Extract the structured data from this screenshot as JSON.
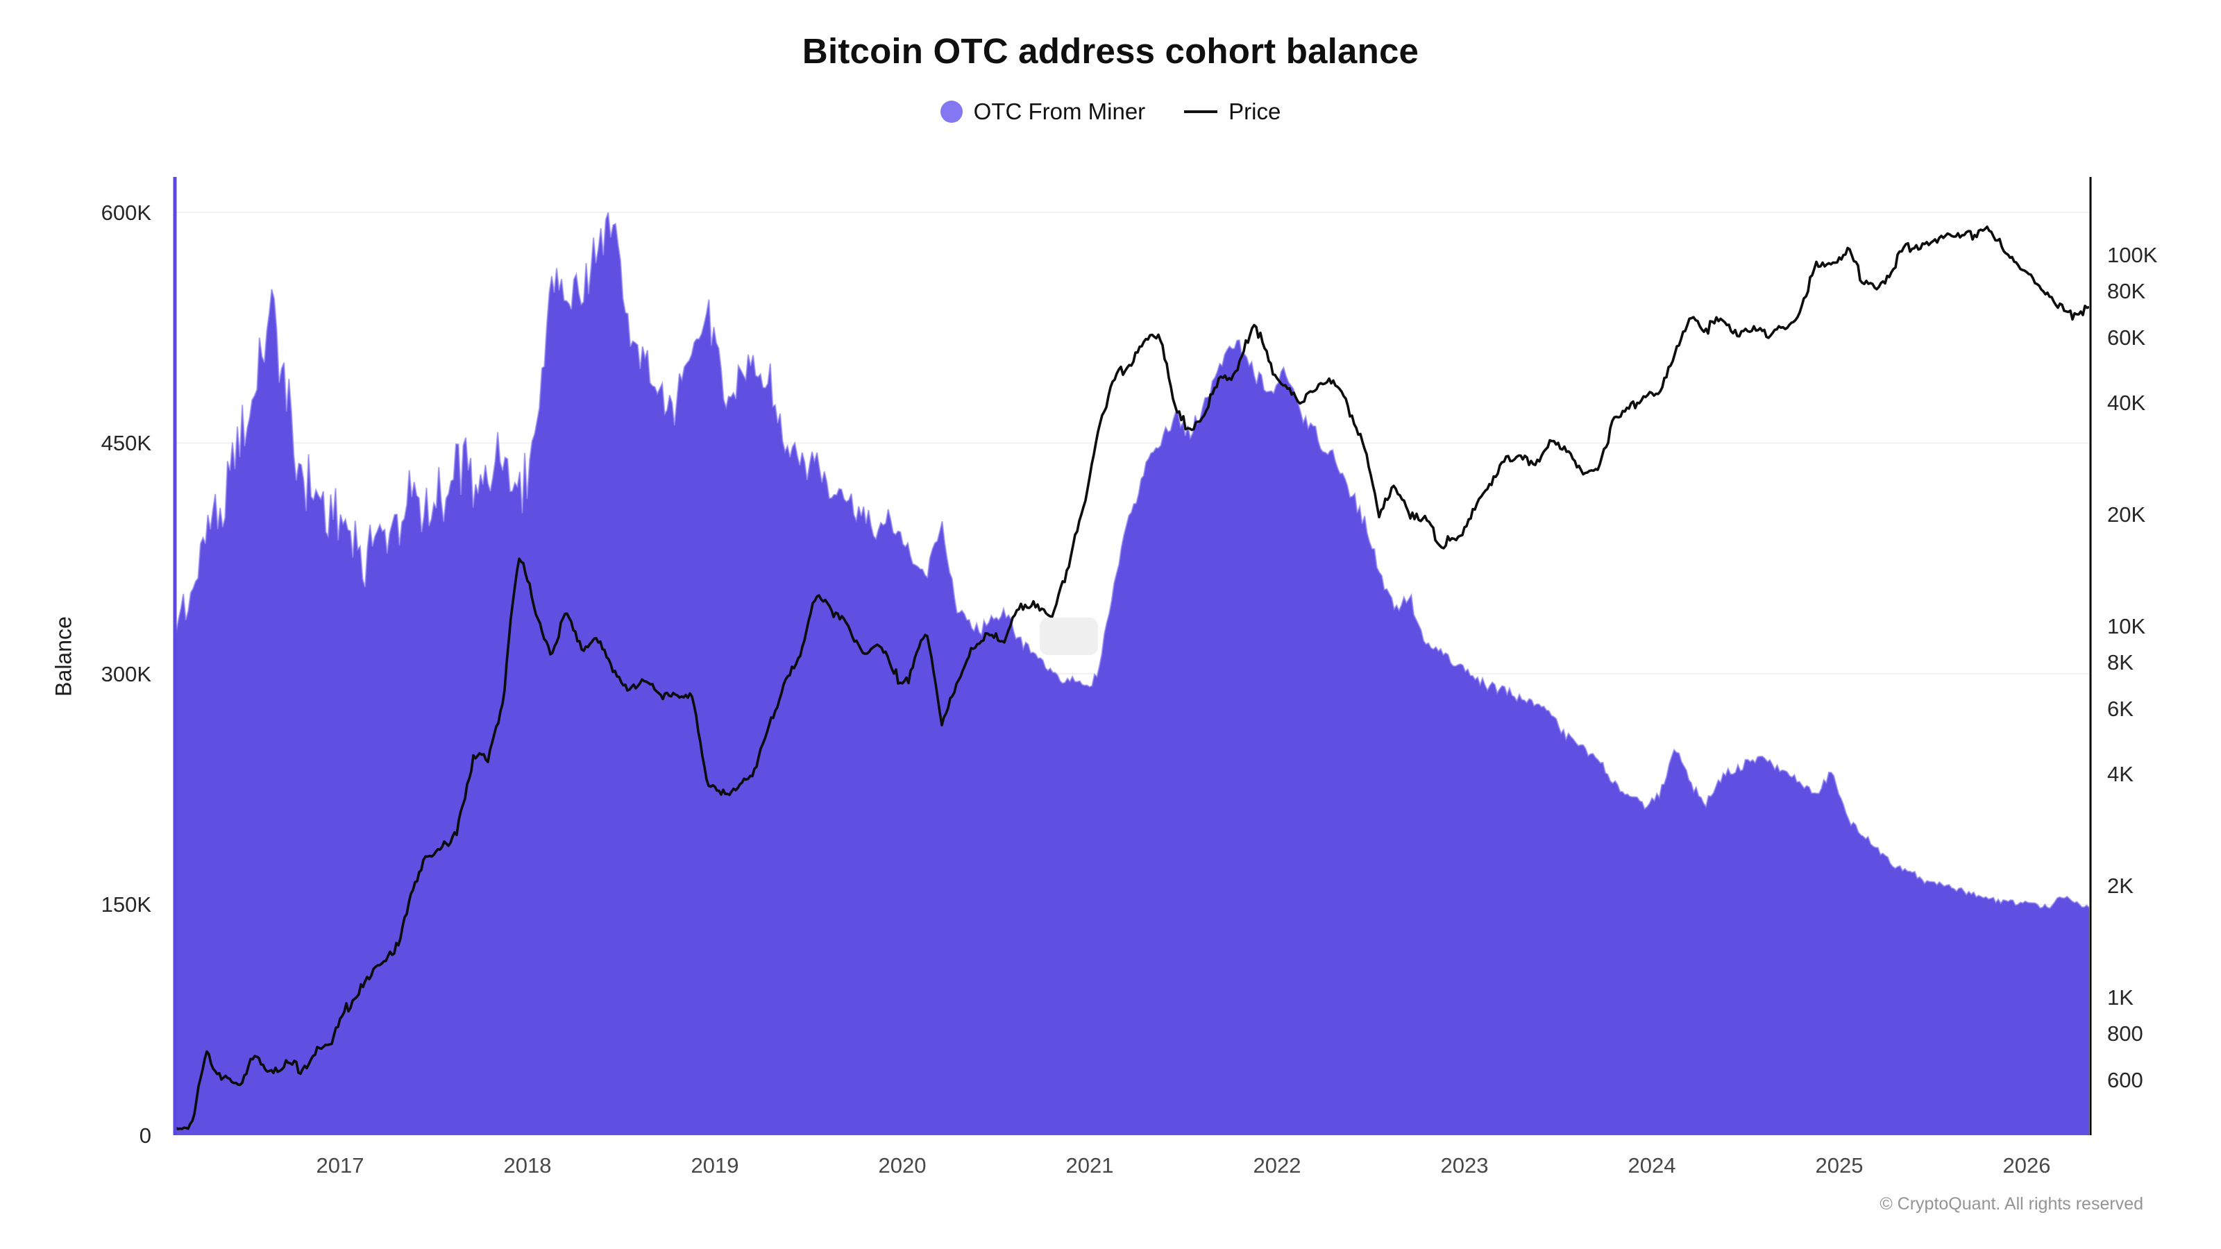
{
  "page": {
    "footer": "© CryptoQuant. All rights reserved",
    "watermark": "CryptoQuant"
  },
  "chart_data": {
    "type": "area+line",
    "title": "Bitcoin OTC address cohort balance",
    "x_domain": [
      2016.111,
      2026.333
    ],
    "x_ticks": [
      {
        "label": "2017",
        "value": 2017
      },
      {
        "label": "2018",
        "value": 2018
      },
      {
        "label": "2019",
        "value": 2019
      },
      {
        "label": "2020",
        "value": 2020
      },
      {
        "label": "2021",
        "value": 2021
      },
      {
        "label": "2022",
        "value": 2022
      },
      {
        "label": "2023",
        "value": 2023
      },
      {
        "label": "2024",
        "value": 2024
      },
      {
        "label": "2025",
        "value": 2025
      },
      {
        "label": "2026",
        "value": 2026
      }
    ],
    "left_axis": {
      "label": "Balance",
      "scale": "linear",
      "domain": [
        0,
        623000
      ],
      "ticks": [
        {
          "label": "0",
          "value": 0
        },
        {
          "label": "150K",
          "value": 150000
        },
        {
          "label": "300K",
          "value": 300000
        },
        {
          "label": "450K",
          "value": 450000
        },
        {
          "label": "600K",
          "value": 600000
        }
      ]
    },
    "right_axis": {
      "label": "Price",
      "scale": "log",
      "domain": [
        425,
        162000
      ],
      "ticks": [
        {
          "label": "100K",
          "value": 100000
        },
        {
          "label": "80K",
          "value": 80000
        },
        {
          "label": "60K",
          "value": 60000
        },
        {
          "label": "40K",
          "value": 40000
        },
        {
          "label": "20K",
          "value": 20000
        },
        {
          "label": "10K",
          "value": 10000
        },
        {
          "label": "8K",
          "value": 8000
        },
        {
          "label": "6K",
          "value": 6000
        },
        {
          "label": "4K",
          "value": 4000
        },
        {
          "label": "2K",
          "value": 2000
        },
        {
          "label": "1K",
          "value": 1000
        },
        {
          "label": "800",
          "value": 800
        },
        {
          "label": "600",
          "value": 600
        }
      ]
    },
    "legend": [
      {
        "label": "OTC From Miner",
        "color": "#8377f2",
        "marker": "dot"
      },
      {
        "label": "Price",
        "color": "#111111",
        "marker": "line"
      }
    ],
    "series": [
      {
        "name": "OTC From Miner",
        "axis": "left",
        "style": "area",
        "color": "#5a49e0",
        "x_start": 2016.125,
        "x_step": 0.0833333,
        "values": [
          340000,
          365000,
          385000,
          410000,
          450000,
          470000,
          540000,
          480000,
          440000,
          415000,
          400000,
          390000,
          382000,
          390000,
          400000,
          425000,
          415000,
          420000,
          430000,
          440000,
          435000,
          430000,
          425000,
          460000,
          555000,
          545000,
          560000,
          580000,
          592000,
          520000,
          495000,
          480000,
          478000,
          490000,
          535000,
          480000,
          495000,
          505000,
          495000,
          455000,
          435000,
          445000,
          420000,
          408000,
          400000,
          398000,
          390000,
          378000,
          362000,
          398000,
          342000,
          332000,
          330000,
          345000,
          322000,
          312000,
          302000,
          296000,
          292000,
          300000,
          352000,
          400000,
          432000,
          452000,
          468000,
          458000,
          478000,
          505000,
          515000,
          495000,
          485000,
          500000,
          470000,
          458000,
          440000,
          425000,
          400000,
          370000,
          340000,
          348000,
          322000,
          312000,
          306000,
          300000,
          293000,
          289000,
          285000,
          280000,
          272000,
          262000,
          252000,
          243000,
          230000,
          222000,
          215000,
          222000,
          252000,
          228000,
          215000,
          232000,
          240000,
          245000,
          242000,
          236000,
          228000,
          220000,
          235000,
          205000,
          196000,
          185000,
          176000,
          170000,
          166000,
          162000,
          159000,
          156000,
          154000,
          152000,
          151000,
          150000,
          149000,
          156000,
          148000
        ]
      },
      {
        "name": "Price",
        "axis": "right",
        "style": "line",
        "color": "#0d0d0d",
        "x_start": 2016.125,
        "x_step": 0.0833333,
        "values": [
          435,
          460,
          695,
          610,
          585,
          670,
          625,
          655,
          635,
          705,
          765,
          960,
          1080,
          1190,
          1300,
          1900,
          2400,
          2500,
          2850,
          4300,
          4350,
          6450,
          15500,
          11000,
          8600,
          10900,
          8900,
          9200,
          7500,
          6400,
          7200,
          6300,
          6500,
          6350,
          3900,
          3600,
          3650,
          4000,
          5200,
          7300,
          8600,
          12200,
          10600,
          10100,
          8450,
          9150,
          7250,
          7300,
          9500,
          5300,
          6850,
          8800,
          9450,
          9150,
          11100,
          11650,
          10750,
          13800,
          19400,
          33000,
          45000,
          50000,
          59000,
          58000,
          37000,
          33500,
          39500,
          47000,
          48000,
          66000,
          50000,
          43000,
          39000,
          43000,
          45500,
          40000,
          31500,
          20100,
          23300,
          20000,
          19400,
          17000,
          16800,
          20000,
          23400,
          28400,
          29200,
          27200,
          30400,
          29200,
          26100,
          26900,
          34500,
          37700,
          42200,
          42600,
          56000,
          70000,
          63800,
          67500,
          61800,
          64600,
          59100,
          63300,
          69900,
          91000,
          93400,
          102000,
          85000,
          82500,
          94000,
          104000,
          107000,
          115000,
          110000,
          114000,
          121000,
          103000,
          93000,
          87000,
          78000,
          68000,
          72000
        ]
      }
    ]
  }
}
